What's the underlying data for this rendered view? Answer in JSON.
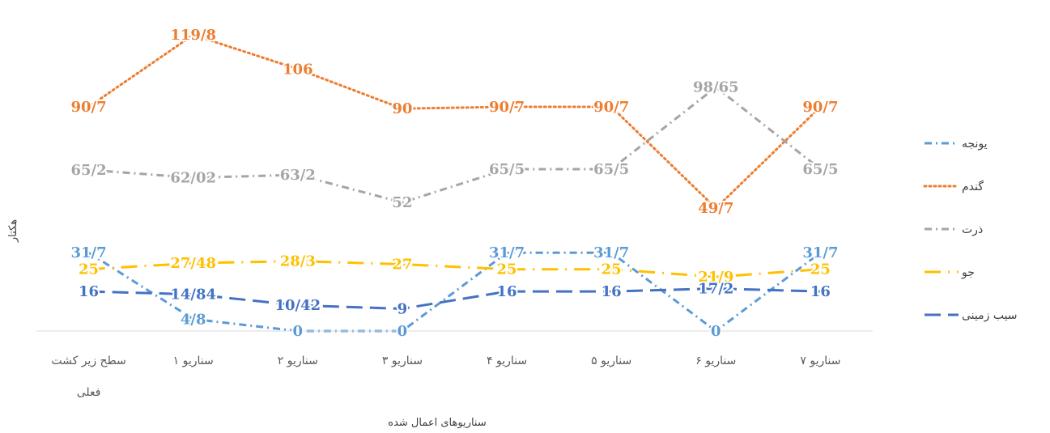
{
  "chart_data": {
    "type": "line",
    "xlabel": "سناریوهای اعمال شده",
    "ylabel": "هکتار",
    "ylim": [
      0,
      130
    ],
    "grid": false,
    "legend_position": "right",
    "categories": [
      [
        "سطح زیر کشت",
        "فعلی"
      ],
      [
        "سناریو ۱"
      ],
      [
        "سناریو ۲"
      ],
      [
        "سناریو ۳"
      ],
      [
        "سناریو ۴"
      ],
      [
        "سناریو ۵"
      ],
      [
        "سناریو ۶"
      ],
      [
        "سناریو ۷"
      ]
    ],
    "series": [
      {
        "name": "یونجه",
        "color": "#5B9BD5",
        "dash": "dashdot",
        "values": [
          31.7,
          4.8,
          0,
          0,
          31.7,
          31.7,
          0,
          31.7
        ],
        "labels": [
          "31/7",
          "4/8",
          "0",
          "0",
          "31/7",
          "31/7",
          "0",
          "31/7"
        ]
      },
      {
        "name": "گندم",
        "color": "#ED7D31",
        "dash": "dot",
        "values": [
          90.7,
          119.8,
          106,
          90,
          90.7,
          90.7,
          49.7,
          90.7
        ],
        "labels": [
          "90/7",
          "119/8",
          "106",
          "90",
          "90/7",
          "90/7",
          "49/7",
          "90/7"
        ]
      },
      {
        "name": "ذرت",
        "color": "#A5A5A5",
        "dash": "dashdot",
        "values": [
          65.2,
          62.02,
          63.2,
          52,
          65.5,
          65.5,
          98.65,
          65.5
        ],
        "labels": [
          "65/2",
          "62/02",
          "63/2",
          "52",
          "65/5",
          "65/5",
          "98/65",
          "65/5"
        ]
      },
      {
        "name": "جو",
        "color": "#FFC000",
        "dash": "longdashdot",
        "values": [
          25,
          27.48,
          28.3,
          27,
          25,
          25,
          21.9,
          25
        ],
        "labels": [
          "25",
          "27/48",
          "28/3",
          "27",
          "25",
          "25",
          "21/9",
          "25"
        ]
      },
      {
        "name": "سیب زمینی",
        "color": "#4472C4",
        "dash": "longdash",
        "values": [
          16,
          14.84,
          10.42,
          9,
          16,
          16,
          17.2,
          16
        ],
        "labels": [
          "16",
          "14/84",
          "10/42",
          "9",
          "16",
          "16",
          "17/2",
          "16"
        ]
      }
    ]
  }
}
